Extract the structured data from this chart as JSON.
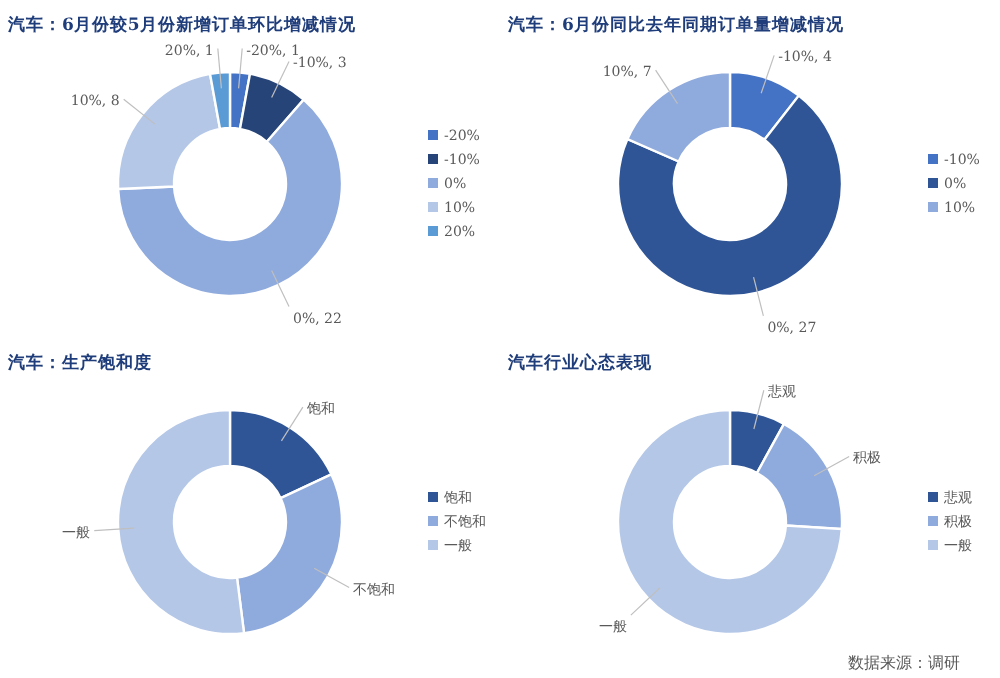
{
  "chart_data": [
    {
      "type": "donut",
      "title": "汽车：6月份较5月份新增订单环比增减情况",
      "categories": [
        "-20%",
        "-10%",
        "0%",
        "10%",
        "20%"
      ],
      "values": [
        1,
        3,
        22,
        8,
        1
      ],
      "value_labels": [
        "-20%, 1",
        "-10%, 3",
        "0%, 22",
        "10%, 8",
        "20%, 1"
      ],
      "colors": [
        "#4472c4",
        "#264478",
        "#8faadc",
        "#b4c7e7",
        "#5b9bd5"
      ],
      "legend": "right"
    },
    {
      "type": "donut",
      "title": "汽车：6月份同比去年同期订单量增减情况",
      "categories": [
        "-10%",
        "0%",
        "10%"
      ],
      "values": [
        4,
        27,
        7
      ],
      "value_labels": [
        "-10%, 4",
        "0%, 27",
        "10%, 7"
      ],
      "colors": [
        "#4472c4",
        "#2f5597",
        "#8faadc"
      ],
      "legend": "right"
    },
    {
      "type": "donut",
      "title": "汽车：生产饱和度",
      "categories": [
        "饱和",
        "不饱和",
        "一般"
      ],
      "values": [
        18,
        30,
        52
      ],
      "colors": [
        "#2f5597",
        "#8faadc",
        "#b4c7e7"
      ],
      "legend": "right"
    },
    {
      "type": "donut",
      "title": "汽车行业心态表现",
      "categories": [
        "悲观",
        "积极",
        "一般"
      ],
      "values": [
        8,
        18,
        74
      ],
      "colors": [
        "#2f5597",
        "#8faadc",
        "#b4c7e7"
      ],
      "legend": "right",
      "annotations": [
        "数据来源：调研"
      ]
    }
  ]
}
